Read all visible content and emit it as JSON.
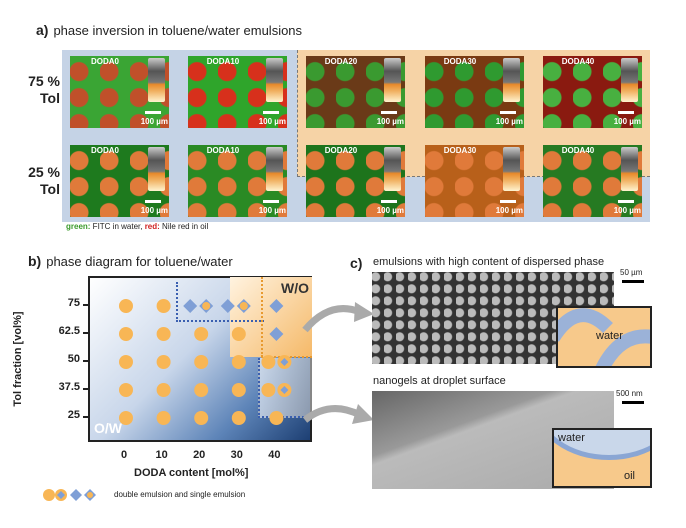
{
  "panel_a": {
    "letter": "a)",
    "title": "phase inversion in toluene/water emulsions",
    "rows": [
      {
        "label_line1": "75 %",
        "label_line2": "Tol",
        "samples": [
          "DODA0",
          "DODA10",
          "DODA20",
          "DODA30",
          "DODA40"
        ]
      },
      {
        "label_line1": "25 %",
        "label_line2": "Tol",
        "samples": [
          "DODA0",
          "DODA10",
          "DODA20",
          "DODA30",
          "DODA40"
        ]
      }
    ],
    "scale_bar": "100 µm",
    "caption_green": "green:",
    "caption_mid": " FITC in water, ",
    "caption_red": "red:",
    "caption_end": " Nile red in oil",
    "colors": {
      "water": "#2fa52b",
      "oil": "#d93a1f",
      "blue_bg": "#c5d3e6",
      "orange_bg": "#f6d3a6"
    }
  },
  "panel_b": {
    "letter": "b)",
    "title": "phase diagram for toluene/water",
    "chart_data": {
      "type": "scatter",
      "xlabel": "DODA content [mol%]",
      "ylabel": "Tol fraction [vol%]",
      "x_ticks": [
        "0",
        "10",
        "20",
        "30",
        "40"
      ],
      "y_ticks": [
        "75",
        "62.5",
        "50",
        "37.5",
        "25"
      ],
      "region_labels": {
        "top_right": "W/O",
        "bottom_left": "O/W"
      },
      "points": [
        {
          "x": 0,
          "y": 75,
          "m": [
            "circle"
          ]
        },
        {
          "x": 10,
          "y": 75,
          "m": [
            "circle"
          ]
        },
        {
          "x": 20,
          "y": 75,
          "m": [
            "diamond",
            "diamond-circle"
          ]
        },
        {
          "x": 30,
          "y": 75,
          "m": [
            "diamond",
            "diamond-circle"
          ]
        },
        {
          "x": 40,
          "y": 75,
          "m": [
            "diamond"
          ]
        },
        {
          "x": 0,
          "y": 62.5,
          "m": [
            "circle"
          ]
        },
        {
          "x": 10,
          "y": 62.5,
          "m": [
            "circle"
          ]
        },
        {
          "x": 20,
          "y": 62.5,
          "m": [
            "circle"
          ]
        },
        {
          "x": 30,
          "y": 62.5,
          "m": [
            "circle"
          ]
        },
        {
          "x": 40,
          "y": 62.5,
          "m": [
            "diamond"
          ]
        },
        {
          "x": 0,
          "y": 50,
          "m": [
            "circle"
          ]
        },
        {
          "x": 10,
          "y": 50,
          "m": [
            "circle"
          ]
        },
        {
          "x": 20,
          "y": 50,
          "m": [
            "circle"
          ]
        },
        {
          "x": 30,
          "y": 50,
          "m": [
            "circle"
          ]
        },
        {
          "x": 40,
          "y": 50,
          "m": [
            "circle",
            "circle-diamond"
          ]
        },
        {
          "x": 0,
          "y": 37.5,
          "m": [
            "circle"
          ]
        },
        {
          "x": 10,
          "y": 37.5,
          "m": [
            "circle"
          ]
        },
        {
          "x": 20,
          "y": 37.5,
          "m": [
            "circle"
          ]
        },
        {
          "x": 30,
          "y": 37.5,
          "m": [
            "circle"
          ]
        },
        {
          "x": 40,
          "y": 37.5,
          "m": [
            "circle",
            "circle-diamond"
          ]
        },
        {
          "x": 0,
          "y": 25,
          "m": [
            "circle"
          ]
        },
        {
          "x": 10,
          "y": 25,
          "m": [
            "circle"
          ]
        },
        {
          "x": 20,
          "y": 25,
          "m": [
            "circle"
          ]
        },
        {
          "x": 30,
          "y": 25,
          "m": [
            "circle"
          ]
        },
        {
          "x": 40,
          "y": 25,
          "m": [
            "circle"
          ]
        }
      ],
      "legend": "double emulsion and single emulsion",
      "colors": {
        "circle": "#f8b655",
        "diamond": "#7f9fd6"
      }
    }
  },
  "panel_c": {
    "letter": "c)",
    "top_title": "emulsions with high content of dispersed phase",
    "top_scale": "50 µm",
    "top_inset_label": "water",
    "bottom_title": "nanogels at droplet surface",
    "bottom_scale": "500 nm",
    "bottom_inset_water": "water",
    "bottom_inset_oil": "oil"
  }
}
